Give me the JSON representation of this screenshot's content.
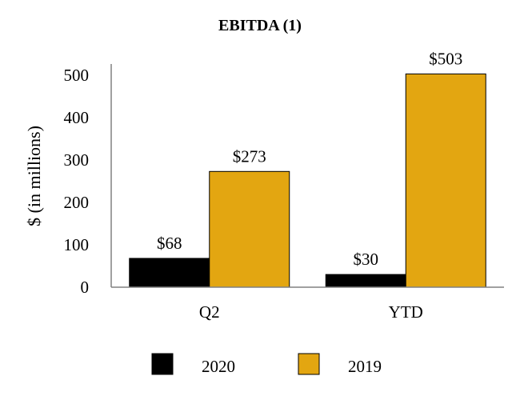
{
  "chart_data": {
    "type": "bar",
    "title": "EBITDA (1)",
    "ylabel": "$ (in millions)",
    "xlabel": "",
    "ylim": [
      0,
      500
    ],
    "yticks": [
      0,
      100,
      200,
      300,
      400,
      500
    ],
    "categories": [
      "Q2",
      "YTD"
    ],
    "series": [
      {
        "name": "2020",
        "values": [
          68,
          30
        ],
        "labels": [
          "$68",
          "$30"
        ],
        "color": "#000000"
      },
      {
        "name": "2019",
        "values": [
          273,
          503
        ],
        "labels": [
          "$273",
          "$503"
        ],
        "color": "#E3A611"
      }
    ],
    "grid": false,
    "legend_position": "bottom"
  }
}
